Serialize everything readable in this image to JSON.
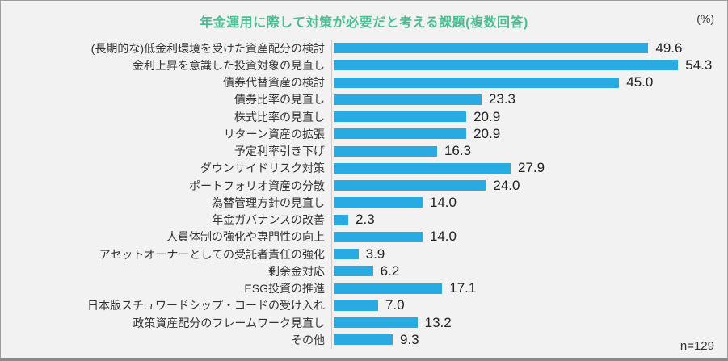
{
  "panel": {
    "title": "年金運用に際して対策が必要だと考える課題(複数回答)",
    "unit_label": "(%)",
    "footnote": "n=129"
  },
  "chart_data": {
    "type": "bar",
    "orientation": "horizontal",
    "title": "年金運用に際して対策が必要だと考える課題(複数回答)",
    "unit_label": "(%)",
    "footnote": "n=129",
    "xlim": [
      0,
      60
    ],
    "grid": false,
    "legend": false,
    "bar_color": "#29abe2",
    "title_color": "#4bbd92",
    "background_color": "#f2f2f2",
    "categories": [
      "(長期的な)低金利環境を受けた資産配分の検討",
      "金利上昇を意識した投資対象の見直し",
      "債券代替資産の検討",
      "債券比率の見直し",
      "株式比率の見直し",
      "リターン資産の拡張",
      "予定利率引き下げ",
      "ダウンサイドリスク対策",
      "ポートフォリオ資産の分散",
      "為替管理方針の見直し",
      "年金ガバナンスの改善",
      "人員体制の強化や専門性の向上",
      "アセットオーナーとしての受託者責任の強化",
      "剰余金対応",
      "ESG投資の推進",
      "日本版スチュワードシップ・コードの受け入れ",
      "政策資産配分のフレームワーク見直し",
      "その他"
    ],
    "values": [
      49.6,
      54.3,
      45.0,
      23.3,
      20.9,
      20.9,
      16.3,
      27.9,
      24.0,
      14.0,
      2.3,
      14.0,
      3.9,
      6.2,
      17.1,
      7.0,
      13.2,
      9.3
    ]
  }
}
